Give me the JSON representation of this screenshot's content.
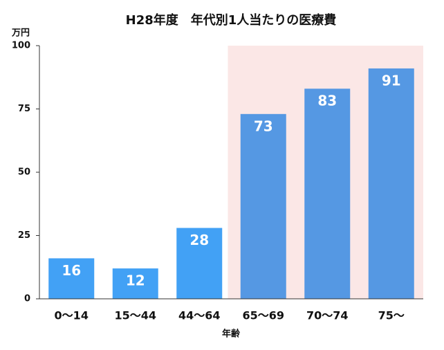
{
  "chart_data": {
    "type": "bar",
    "title": "H28年度　年代別1人当たりの医療費",
    "y_label": "万円",
    "x_label": "年齢",
    "categories": [
      "0〜14",
      "15〜44",
      "44〜64",
      "65〜69",
      "70〜74",
      "75〜"
    ],
    "values": [
      16,
      12,
      28,
      73,
      83,
      91
    ],
    "colors": [
      "#42a1f5",
      "#42a1f5",
      "#42a1f5",
      "#5598e3",
      "#5598e3",
      "#5598e3"
    ],
    "shade": {
      "start": 3,
      "color": "#fbe7e6"
    },
    "ylim": [
      0,
      100
    ],
    "yticks": [
      0,
      25,
      50,
      75,
      100
    ],
    "grid": false
  }
}
